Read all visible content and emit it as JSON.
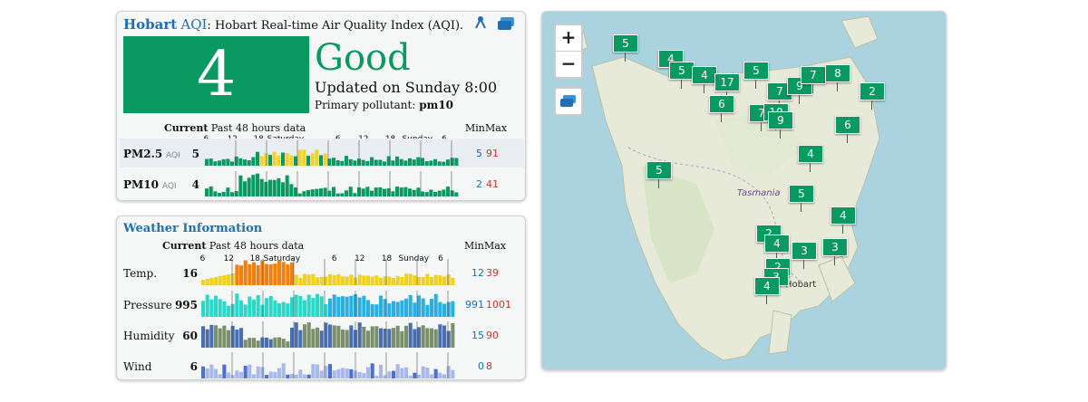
{
  "aqi_panel": {
    "city": "Hobart",
    "aqi_word": "AQI",
    "description": "Hobart Real-time Air Quality Index (AQI).",
    "value": "4",
    "status": "Good",
    "updated": "Updated on Sunday 8:00",
    "primary_label": "Primary pollutant:",
    "primary_value": "pm10",
    "current_label": "Current",
    "past_label": "Past 48 hours data",
    "min_label": "Min",
    "max_label": "Max",
    "ticks": [
      "6",
      "12",
      "18",
      "Saturday",
      "6",
      "12",
      "18",
      "Sunday",
      "6"
    ],
    "rows": [
      {
        "name": "PM2.5",
        "unit": "AQI",
        "current": "5",
        "min": "5",
        "max": "91"
      },
      {
        "name": "PM10",
        "unit": "AQI",
        "current": "4",
        "min": "2",
        "max": "41"
      }
    ]
  },
  "weather_panel": {
    "title": "Weather Information",
    "current_label": "Current",
    "past_label": "Past 48 hours data",
    "min_label": "Min",
    "max_label": "Max",
    "ticks": [
      "6",
      "12",
      "18",
      "Saturday",
      "6",
      "12",
      "18",
      "Sunday",
      "6"
    ],
    "rows": [
      {
        "name": "Temp.",
        "current": "16",
        "min": "12",
        "max": "39"
      },
      {
        "name": "Pressure",
        "current": "995",
        "min": "991",
        "max": "1001"
      },
      {
        "name": "Humidity",
        "current": "60",
        "min": "15",
        "max": "90"
      },
      {
        "name": "Wind",
        "current": "6",
        "min": "0",
        "max": "8"
      }
    ]
  },
  "map": {
    "zoom_in": "+",
    "zoom_out": "−",
    "region_label": "Tasmania",
    "city_label": "Hobart",
    "markers": [
      "5",
      "4",
      "5",
      "4",
      "17",
      "5",
      "7",
      "9",
      "7",
      "8",
      "2",
      "6",
      "7",
      "10",
      "9",
      "6",
      "4",
      "5",
      "5",
      "4",
      "2",
      "4",
      "3",
      "3",
      "2",
      "3",
      "4"
    ]
  },
  "colors": {
    "good": "#0a9a61",
    "moderate": "#f3d32a",
    "link": "#1e6fb3",
    "max": "#c0392b"
  }
}
